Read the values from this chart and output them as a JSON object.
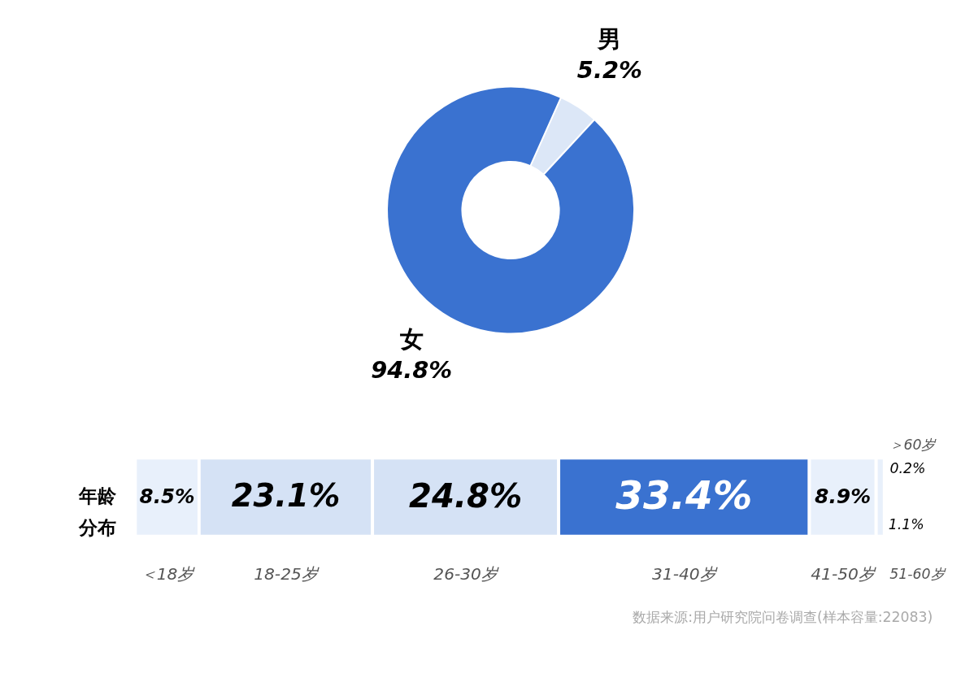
{
  "chart_data": [
    {
      "type": "donut",
      "categories": [
        "男",
        "女"
      ],
      "values": [
        5.2,
        94.8
      ],
      "colors": [
        "#dce7f7",
        "#3a72d0"
      ],
      "value_labels": [
        "5.2%",
        "94.8%"
      ],
      "legend": false
    },
    {
      "type": "bar",
      "orientation": "horizontal",
      "stacked": true,
      "ylabel": "年龄分布",
      "categories": [
        null
      ],
      "tick_labels": false,
      "series": [
        {
          "name": "＜18岁",
          "color": "#e8f0fb",
          "values": [
            8.5
          ],
          "value_labels": [
            "8.5%"
          ]
        },
        {
          "name": "18-25岁",
          "color": "#d5e2f5",
          "values": [
            23.1
          ],
          "value_labels": [
            "23.1%"
          ]
        },
        {
          "name": "26-30岁",
          "color": "#d5e2f5",
          "values": [
            24.8
          ],
          "value_labels": [
            "24.8%"
          ]
        },
        {
          "name": "31-40岁",
          "color": "#3a72d0",
          "values": [
            33.4
          ],
          "value_labels": [
            "33.4%"
          ]
        },
        {
          "name": "41-50岁",
          "color": "#e8f0fb",
          "values": [
            8.9
          ],
          "value_labels": [
            "8.9%"
          ]
        },
        {
          "name": "51-60岁",
          "color": "#e8f0fb",
          "values": [
            1.1
          ],
          "value_labels": [
            "1.1%"
          ]
        },
        {
          "name": "＞60岁",
          "color": "#e8f0fb",
          "values": [
            0.2
          ],
          "value_labels": [
            "0.2%"
          ]
        }
      ],
      "annotations": [
        "数据来源:用户研究院问卷调查(样本容量:22083)"
      ]
    }
  ]
}
